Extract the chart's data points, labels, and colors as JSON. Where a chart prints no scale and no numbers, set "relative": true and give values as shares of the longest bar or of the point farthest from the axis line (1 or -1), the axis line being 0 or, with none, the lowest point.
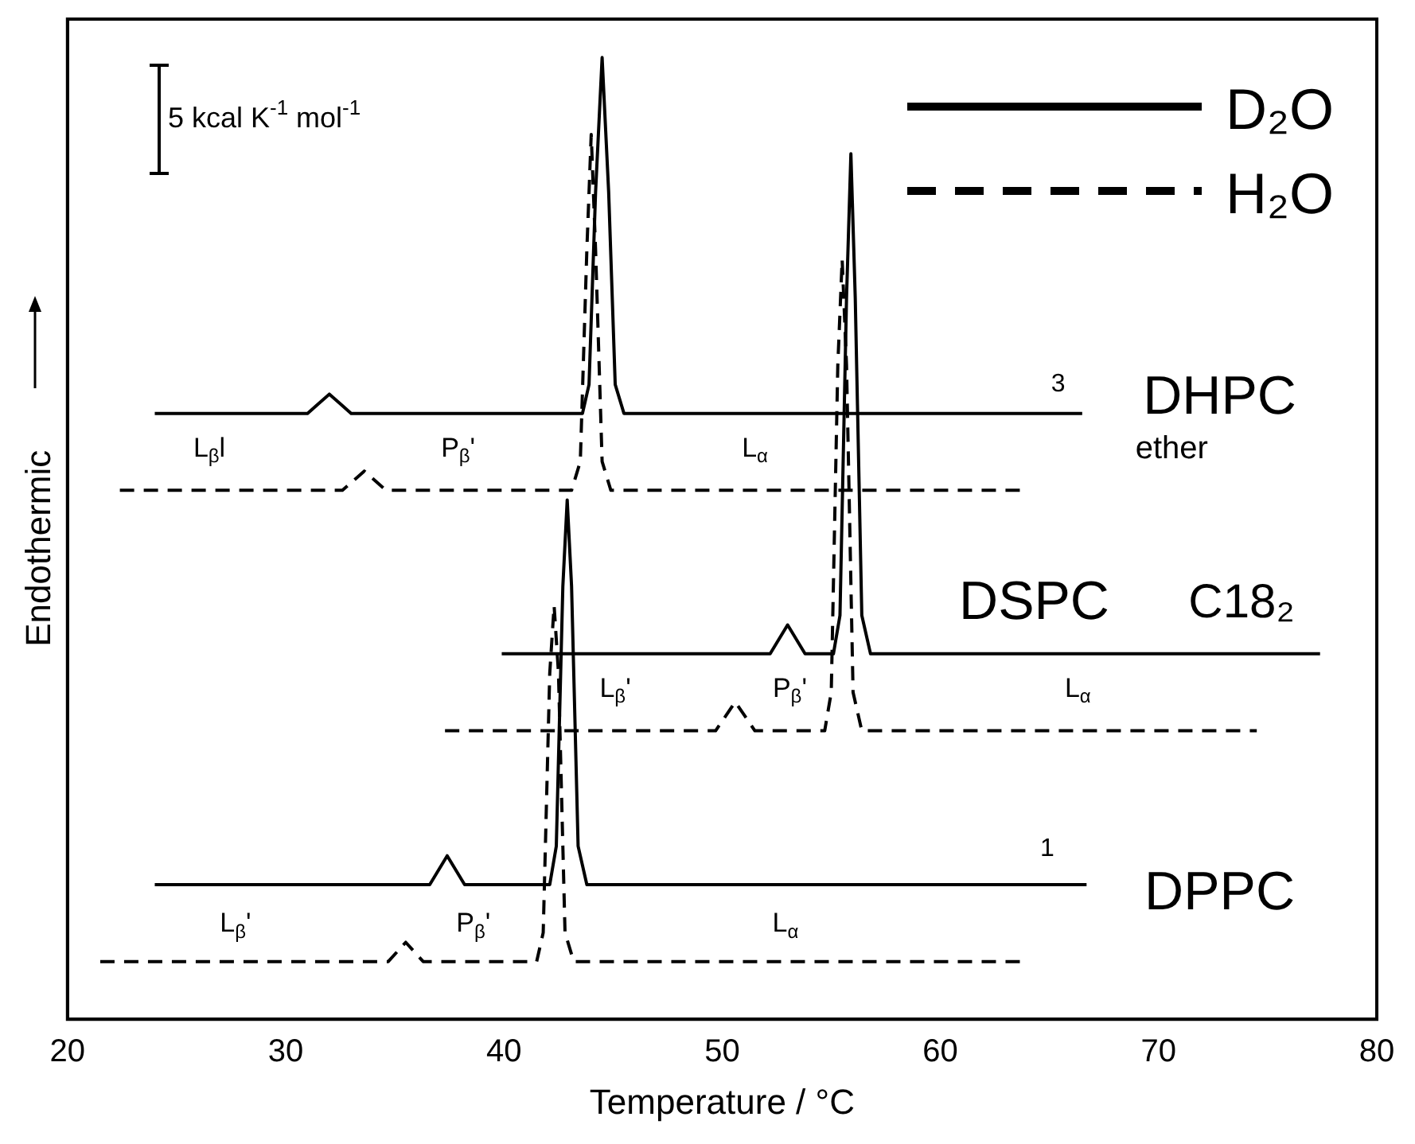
{
  "chart_data": {
    "type": "line",
    "xlabel": "Temperature / °C",
    "ylabel": "Endothermic",
    "relative": true,
    "xlim": [
      20,
      80
    ],
    "xticks": [
      20,
      30,
      40,
      50,
      60,
      70,
      80
    ],
    "grid": false,
    "legend": "top right",
    "marker": "none",
    "series": [
      {
        "name": "D₂O",
        "color": "#000000",
        "line_style": "solid",
        "x": [
          24,
          31,
          32,
          33,
          43.6,
          43.9,
          44.2,
          44.5,
          44.8,
          45.1,
          45.5,
          66.5
        ],
        "values": [
          0.63,
          0.63,
          0.65,
          0.63,
          0.63,
          0.66,
          0.86,
          1,
          0.86,
          0.66,
          0.63,
          0.63
        ]
      },
      {
        "name": "H₂O",
        "color": "#000000",
        "line_style": "dashed",
        "x": [
          22.4,
          32.6,
          33.6,
          34.6,
          43.1,
          43.5,
          43.8,
          44,
          44.2,
          44.5,
          44.9,
          63.7
        ],
        "values": [
          0.55,
          0.55,
          0.57,
          0.55,
          0.55,
          0.58,
          0.8,
          0.92,
          0.8,
          0.58,
          0.55,
          0.55
        ]
      },
      {
        "color": "#000000",
        "line_style": "solid",
        "x": [
          39.9,
          52.2,
          53,
          53.8,
          55.1,
          55.4,
          55.7,
          55.9,
          56.1,
          56.4,
          56.8,
          77.4
        ],
        "values": [
          0.38,
          0.38,
          0.41,
          0.38,
          0.38,
          0.42,
          0.75,
          0.9,
          0.75,
          0.42,
          0.38,
          0.38
        ]
      },
      {
        "color": "#000000",
        "line_style": "dashed",
        "x": [
          37.3,
          49.7,
          50.6,
          51.5,
          54.7,
          55,
          55.3,
          55.5,
          55.7,
          56,
          56.4,
          74.5
        ],
        "values": [
          0.3,
          0.3,
          0.33,
          0.3,
          0.3,
          0.34,
          0.68,
          0.79,
          0.68,
          0.34,
          0.3,
          0.3
        ]
      },
      {
        "color": "#000000",
        "line_style": "solid",
        "x": [
          24,
          36.6,
          37.4,
          38.2,
          42.1,
          42.4,
          42.7,
          42.9,
          43.1,
          43.4,
          43.8,
          66.7
        ],
        "values": [
          0.14,
          0.14,
          0.17,
          0.14,
          0.14,
          0.18,
          0.45,
          0.54,
          0.45,
          0.18,
          0.14,
          0.14
        ]
      },
      {
        "color": "#000000",
        "line_style": "dashed",
        "x": [
          21.5,
          34.7,
          35.5,
          36.3,
          41.5,
          41.8,
          42.1,
          42.3,
          42.5,
          42.8,
          43.2,
          63.7
        ],
        "values": [
          0.06,
          0.06,
          0.08,
          0.06,
          0.06,
          0.09,
          0.36,
          0.43,
          0.36,
          0.09,
          0.06,
          0.06
        ]
      }
    ],
    "annotations": [
      "DHPC",
      "ether",
      "DSPC",
      "C18₂",
      "DPPC",
      "3",
      "1",
      "5 kcal K$^{-1}$ mol$^{-1}$",
      "L$_{β}$l",
      "P$_{β}$'",
      "L$_{α}$",
      "L$_{β}$'",
      "P$_{β}$'",
      "L$_{α}$",
      "L$_{β}$'",
      "P$_{β}$'",
      "L$_{α}$"
    ]
  }
}
